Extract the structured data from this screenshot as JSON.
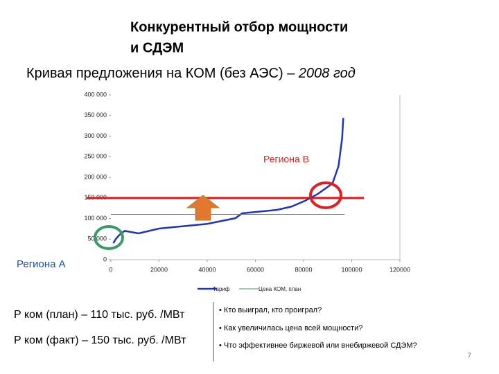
{
  "slide": {
    "title": [
      "Конкурентный отбор мощности",
      "и СДЭМ"
    ],
    "subtitle": {
      "main": "Кривая предложения на КОМ (без АЭС) – ",
      "italic": "2008 год"
    },
    "notes": [
      "P ком (план) – 110 тыс. руб. /МВт",
      "P ком (факт) – 150 тыс. руб. /МВт"
    ],
    "bullets": [
      "• Кто выиграл, кто проиграл?",
      "• Как увеличилась цена всей мощности?",
      "• Что эффективнее биржевой или внебиржевой СДЭМ?"
    ],
    "page_number": "7"
  },
  "chart_data": {
    "type": "line",
    "annotations": [
      {
        "text": "Региона В",
        "color": "#e02020"
      },
      {
        "text": "Региона А",
        "color": "#1a4fa0"
      }
    ],
    "x": [],
    "series": [
      {
        "name": "Тариф",
        "color": "#2233bb",
        "x": [
          1000,
          2000,
          3500,
          5700,
          11500,
          20000,
          40000,
          51700,
          54500,
          69000,
          75000,
          80600,
          86000,
          92000,
          94500,
          96000,
          96500
        ],
        "values": [
          40000,
          50000,
          60000,
          70000,
          64000,
          75600,
          87000,
          100800,
          112600,
          121000,
          129000,
          143000,
          160000,
          185000,
          227000,
          294000,
          344000
        ]
      },
      {
        "name": "Цена КОМ, план",
        "color": "#3a9a5a",
        "x": [
          0,
          97000
        ],
        "values": [
          110000,
          110000
        ]
      }
    ],
    "hline": {
      "value": 150000,
      "color": "#e02020"
    },
    "xlim": [
      0,
      120000
    ],
    "xticks": [
      0,
      20000,
      40000,
      60000,
      80000,
      100000,
      120000
    ],
    "ylim": [
      0,
      400000
    ],
    "yticks": [
      0,
      {
        "value": 50000,
        "label": "50 000"
      },
      {
        "value": 100000,
        "label": "100 000"
      },
      {
        "value": 150000,
        "label": "150 000"
      },
      {
        "value": 200000,
        "label": "200 000"
      },
      {
        "value": 250000,
        "label": "250 000"
      },
      {
        "value": 300000,
        "label": "300 000"
      },
      {
        "value": 350000,
        "label": "350 000"
      },
      {
        "value": 400000,
        "label": "400 000"
      }
    ]
  }
}
